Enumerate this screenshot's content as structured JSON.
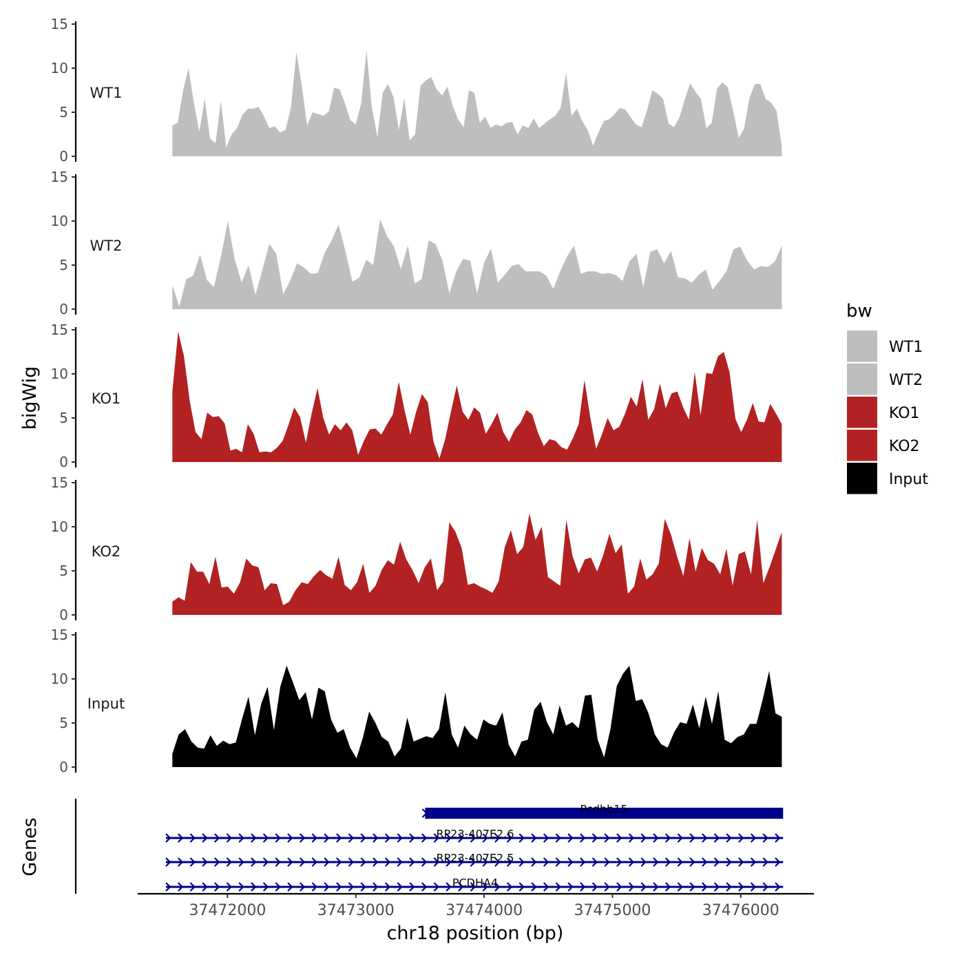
{
  "chart_data": {
    "type": "area",
    "x_axis_label": "chr18 position (bp)",
    "y_axis_label": "bigWig",
    "genes_axis_label": "Genes",
    "xlim": [
      37471300,
      37476570
    ],
    "x_ticks": [
      37472000,
      37473000,
      37474000,
      37475000,
      37476000
    ],
    "x_tick_labels": [
      "37472000",
      "37473000",
      "37474000",
      "37475000",
      "37476000"
    ],
    "ylim": [
      0,
      15
    ],
    "y_ticks": [
      0,
      5,
      10,
      15
    ],
    "y_tick_labels": [
      "0",
      "5",
      "10",
      "15"
    ],
    "legend_title": "bw",
    "legend": [
      {
        "label": "WT1",
        "color": "#bebebe"
      },
      {
        "label": "WT2",
        "color": "#bebebe"
      },
      {
        "label": "KO1",
        "color": "#b22222"
      },
      {
        "label": "KO2",
        "color": "#b22222"
      },
      {
        "label": "Input",
        "color": "#000000"
      }
    ],
    "tracks": [
      {
        "name": "WT1",
        "label": "WT1",
        "color": "#bebebe",
        "x_start": 37471570,
        "x_end": 37476320,
        "values": [
          3.5,
          3.8,
          7.5,
          10,
          6,
          2.8,
          6.5,
          2,
          1.5,
          6.3,
          1,
          2.5,
          3.2,
          4.7,
          5.4,
          5.4,
          5.6,
          4.5,
          3.2,
          3.4,
          2.7,
          3,
          5.6,
          11.8,
          8,
          3.5,
          5,
          4.8,
          4.6,
          5.1,
          7.8,
          7.6,
          6,
          4.1,
          3.6,
          6,
          12,
          5.5,
          2.2,
          7.2,
          8.2,
          6.7,
          3,
          6.6,
          1.8,
          2.5,
          8,
          8.6,
          9,
          7.6,
          6.9,
          7.9,
          5.7,
          4.2,
          3.3,
          7.5,
          7.2,
          3.8,
          4.5,
          3.2,
          3.6,
          3.4,
          3.8,
          3.9,
          2.5,
          3.5,
          3.2,
          4.3,
          3.2,
          3.7,
          4.2,
          4.6,
          5.5,
          9.5,
          4.6,
          5.4,
          4,
          3,
          1.2,
          2.7,
          4,
          4.2,
          4.8,
          5.5,
          5.3,
          4.4,
          3.6,
          3.3,
          5.2,
          7.5,
          7.1,
          6.5,
          3.7,
          3.3,
          4.4,
          6.4,
          8.3,
          7.3,
          6.5,
          3.2,
          3.8,
          7.7,
          8.4,
          7.8,
          5.1,
          2.1,
          3.1,
          6.6,
          8.2,
          8.2,
          6.5,
          6.1,
          5.2,
          1.1
        ]
      },
      {
        "name": "WT2",
        "label": "WT2",
        "color": "#bebebe",
        "x_start": 37471570,
        "x_end": 37476320,
        "values": [
          2.7,
          0.3,
          3.4,
          3.8,
          6.2,
          3.3,
          2.5,
          5.9,
          10,
          5.7,
          3,
          5,
          1.6,
          4.5,
          7.4,
          6.3,
          1.7,
          3.2,
          5.2,
          4.7,
          4,
          4.1,
          6.4,
          7.8,
          9.6,
          6.5,
          3.1,
          3.6,
          5.6,
          5,
          10.2,
          8.3,
          7.1,
          4.5,
          7.2,
          2.9,
          3.4,
          7.8,
          7.4,
          5.5,
          1.8,
          4.3,
          5.7,
          5.5,
          1.8,
          5.2,
          6.9,
          3,
          3.9,
          4.9,
          5.1,
          4.3,
          4.3,
          4.3,
          3.8,
          2.3,
          4.3,
          6,
          7.2,
          4,
          4.3,
          4.3,
          4,
          4.1,
          3.9,
          3.2,
          5.4,
          6.3,
          2.5,
          6.5,
          6.8,
          5.2,
          6.6,
          3.6,
          3.5,
          3,
          3.9,
          4.5,
          2.2,
          3.2,
          4.3,
          6.8,
          7.1,
          5.5,
          4.5,
          4.9,
          4.8,
          5.4,
          7.2
        ]
      },
      {
        "name": "KO1",
        "label": "KO1",
        "color": "#b22222",
        "x_start": 37471570,
        "x_end": 37476320,
        "values": [
          8,
          14.8,
          12,
          6.9,
          3.4,
          2.6,
          5.6,
          5.1,
          5.2,
          4.4,
          1.3,
          1.5,
          1.1,
          4.3,
          3.2,
          1.1,
          1.2,
          1.1,
          1.6,
          2.4,
          4.2,
          6.2,
          5.1,
          2.2,
          5.5,
          8.4,
          5,
          3.1,
          4.3,
          3.6,
          4.5,
          3.6,
          0.8,
          2.4,
          3.7,
          3.8,
          3.1,
          4.3,
          5.4,
          9.1,
          5.9,
          3.1,
          5.7,
          7.7,
          6.8,
          2.3,
          0.4,
          2.6,
          5.7,
          8.7,
          5.7,
          4.8,
          6.2,
          5.6,
          3.2,
          4.3,
          5.6,
          3.4,
          2.3,
          3.7,
          4.5,
          5.9,
          5.4,
          3.3,
          1.8,
          2.6,
          2.4,
          1.7,
          1.4,
          2.7,
          4.3,
          9.3,
          5.1,
          1.5,
          3.1,
          5,
          3.6,
          4,
          5.5,
          7.4,
          6.3,
          9.4,
          4.8,
          6,
          8.9,
          6.1,
          7.8,
          8,
          6.2,
          4.8,
          10.2,
          5.3,
          10.1,
          10,
          12,
          12.5,
          10.2,
          4.9,
          3.4,
          4.8,
          6.7,
          4.6,
          4.5,
          6.6,
          5.5,
          4.3
        ]
      },
      {
        "name": "KO2",
        "label": "KO2",
        "color": "#b22222",
        "x_start": 37471570,
        "x_end": 37476320,
        "values": [
          1.5,
          2,
          1.6,
          6,
          4.9,
          4.9,
          3.5,
          6.6,
          3.1,
          3.2,
          2.4,
          3.7,
          6.4,
          5.6,
          5.4,
          2.8,
          3.6,
          3.5,
          1.1,
          1.5,
          2.8,
          3.7,
          3.5,
          4.4,
          5.1,
          4.5,
          4.1,
          6.6,
          3.4,
          2.8,
          3.7,
          5.8,
          2.5,
          3.3,
          5.1,
          6.2,
          5.7,
          8.3,
          6.3,
          5.1,
          3.6,
          5.4,
          6.4,
          2.8,
          3.8,
          10.5,
          9.4,
          7.6,
          3.4,
          3.6,
          3.2,
          2.9,
          2.5,
          3.8,
          7.7,
          9.6,
          6.9,
          7.7,
          11.5,
          8.5,
          10,
          4.3,
          3.8,
          3.3,
          10.8,
          6.7,
          4.7,
          6.3,
          6.5,
          4.9,
          6.8,
          9.2,
          7,
          8,
          2.4,
          3.2,
          6.4,
          4,
          4.6,
          5.8,
          10.9,
          9.1,
          6.6,
          4.4,
          8.7,
          4.9,
          7.6,
          6.2,
          5.8,
          4.6,
          7.5,
          3.3,
          6.9,
          7.2,
          4.6,
          10.8,
          3.6,
          5.4,
          7.4,
          9.4
        ]
      },
      {
        "name": "Input",
        "label": "Input",
        "color": "#000000",
        "x_start": 37471570,
        "x_end": 37476320,
        "values": [
          1.5,
          3.7,
          4.3,
          2.9,
          2.2,
          2.1,
          3.6,
          2.4,
          3,
          2.6,
          2.8,
          5.5,
          8,
          3.6,
          7.2,
          9.1,
          4.2,
          9.1,
          11.5,
          9.6,
          7.6,
          8.5,
          5.4,
          9,
          8.6,
          5.4,
          3.9,
          4.3,
          2.2,
          1,
          3.3,
          6.3,
          5,
          3.4,
          2.9,
          1.2,
          2.1,
          5.6,
          2.9,
          3.2,
          3.5,
          3.3,
          4.3,
          8.5,
          3.7,
          2.2,
          4.7,
          3.7,
          3.1,
          5.4,
          4.9,
          4.7,
          6.2,
          2.5,
          1.2,
          2.9,
          3.1,
          6.5,
          7.4,
          5.1,
          3.7,
          7,
          4.7,
          5.1,
          4.4,
          8.1,
          8.2,
          3.1,
          1.1,
          4.3,
          9.2,
          10.6,
          11.5,
          7.5,
          7.7,
          6.1,
          3.7,
          2.6,
          2.2,
          3.9,
          5.1,
          4.9,
          7.1,
          4.4,
          8,
          4.9,
          8.6,
          3.1,
          2.7,
          3.4,
          3.7,
          4.9,
          4.9,
          7.7,
          10.9,
          6.1,
          5.7
        ]
      }
    ],
    "genes": [
      {
        "name": "Pcdhb15",
        "start": 37473540,
        "end": 37476330,
        "type": "exon",
        "color": "#00008b"
      },
      {
        "name": "RP23-407E2.6",
        "start": 37471520,
        "end": 37476330,
        "type": "intron",
        "color": "#00008b"
      },
      {
        "name": "RP23-407E2.5",
        "start": 37471520,
        "end": 37476330,
        "type": "intron",
        "color": "#00008b"
      },
      {
        "name": "PCDHA4",
        "start": 37471520,
        "end": 37476330,
        "type": "intron",
        "color": "#00008b"
      }
    ]
  }
}
